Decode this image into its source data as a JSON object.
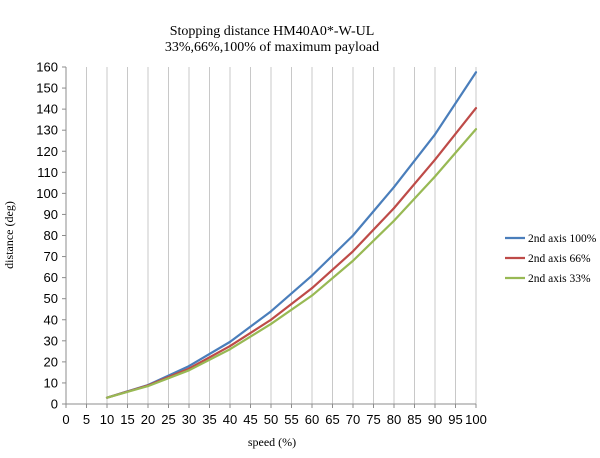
{
  "chart_data": {
    "type": "line",
    "title": "Stopping distance HM40A0*-W-UL",
    "subtitle": "33%,66%,100% of maximum payload",
    "xlabel": "speed (%)",
    "ylabel": "distance (deg)",
    "xlim": [
      0,
      100
    ],
    "ylim": [
      0,
      160
    ],
    "x_ticks": [
      0,
      5,
      10,
      15,
      20,
      25,
      30,
      35,
      40,
      45,
      50,
      55,
      60,
      65,
      70,
      75,
      80,
      85,
      90,
      95,
      100
    ],
    "y_ticks": [
      0,
      10,
      20,
      30,
      40,
      50,
      60,
      70,
      80,
      90,
      100,
      110,
      120,
      130,
      140,
      150,
      160
    ],
    "grid": "vertical",
    "legend_position": "right",
    "x": [
      10,
      20,
      30,
      40,
      50,
      60,
      70,
      80,
      90,
      100
    ],
    "series": [
      {
        "name": "2nd axis 100%",
        "color": "#4a7ebb",
        "values": [
          3,
          9,
          18,
          29.5,
          44,
          61,
          80,
          103,
          128,
          157.5
        ]
      },
      {
        "name": "2nd axis 66%",
        "color": "#be4b48",
        "values": [
          3,
          8.8,
          16.8,
          27.5,
          40,
          55,
          72.5,
          93,
          116,
          140.5
        ]
      },
      {
        "name": "2nd axis 33%",
        "color": "#98b954",
        "values": [
          3,
          8.5,
          16,
          26,
          38,
          51.5,
          68,
          87,
          108,
          130.5
        ]
      }
    ]
  }
}
